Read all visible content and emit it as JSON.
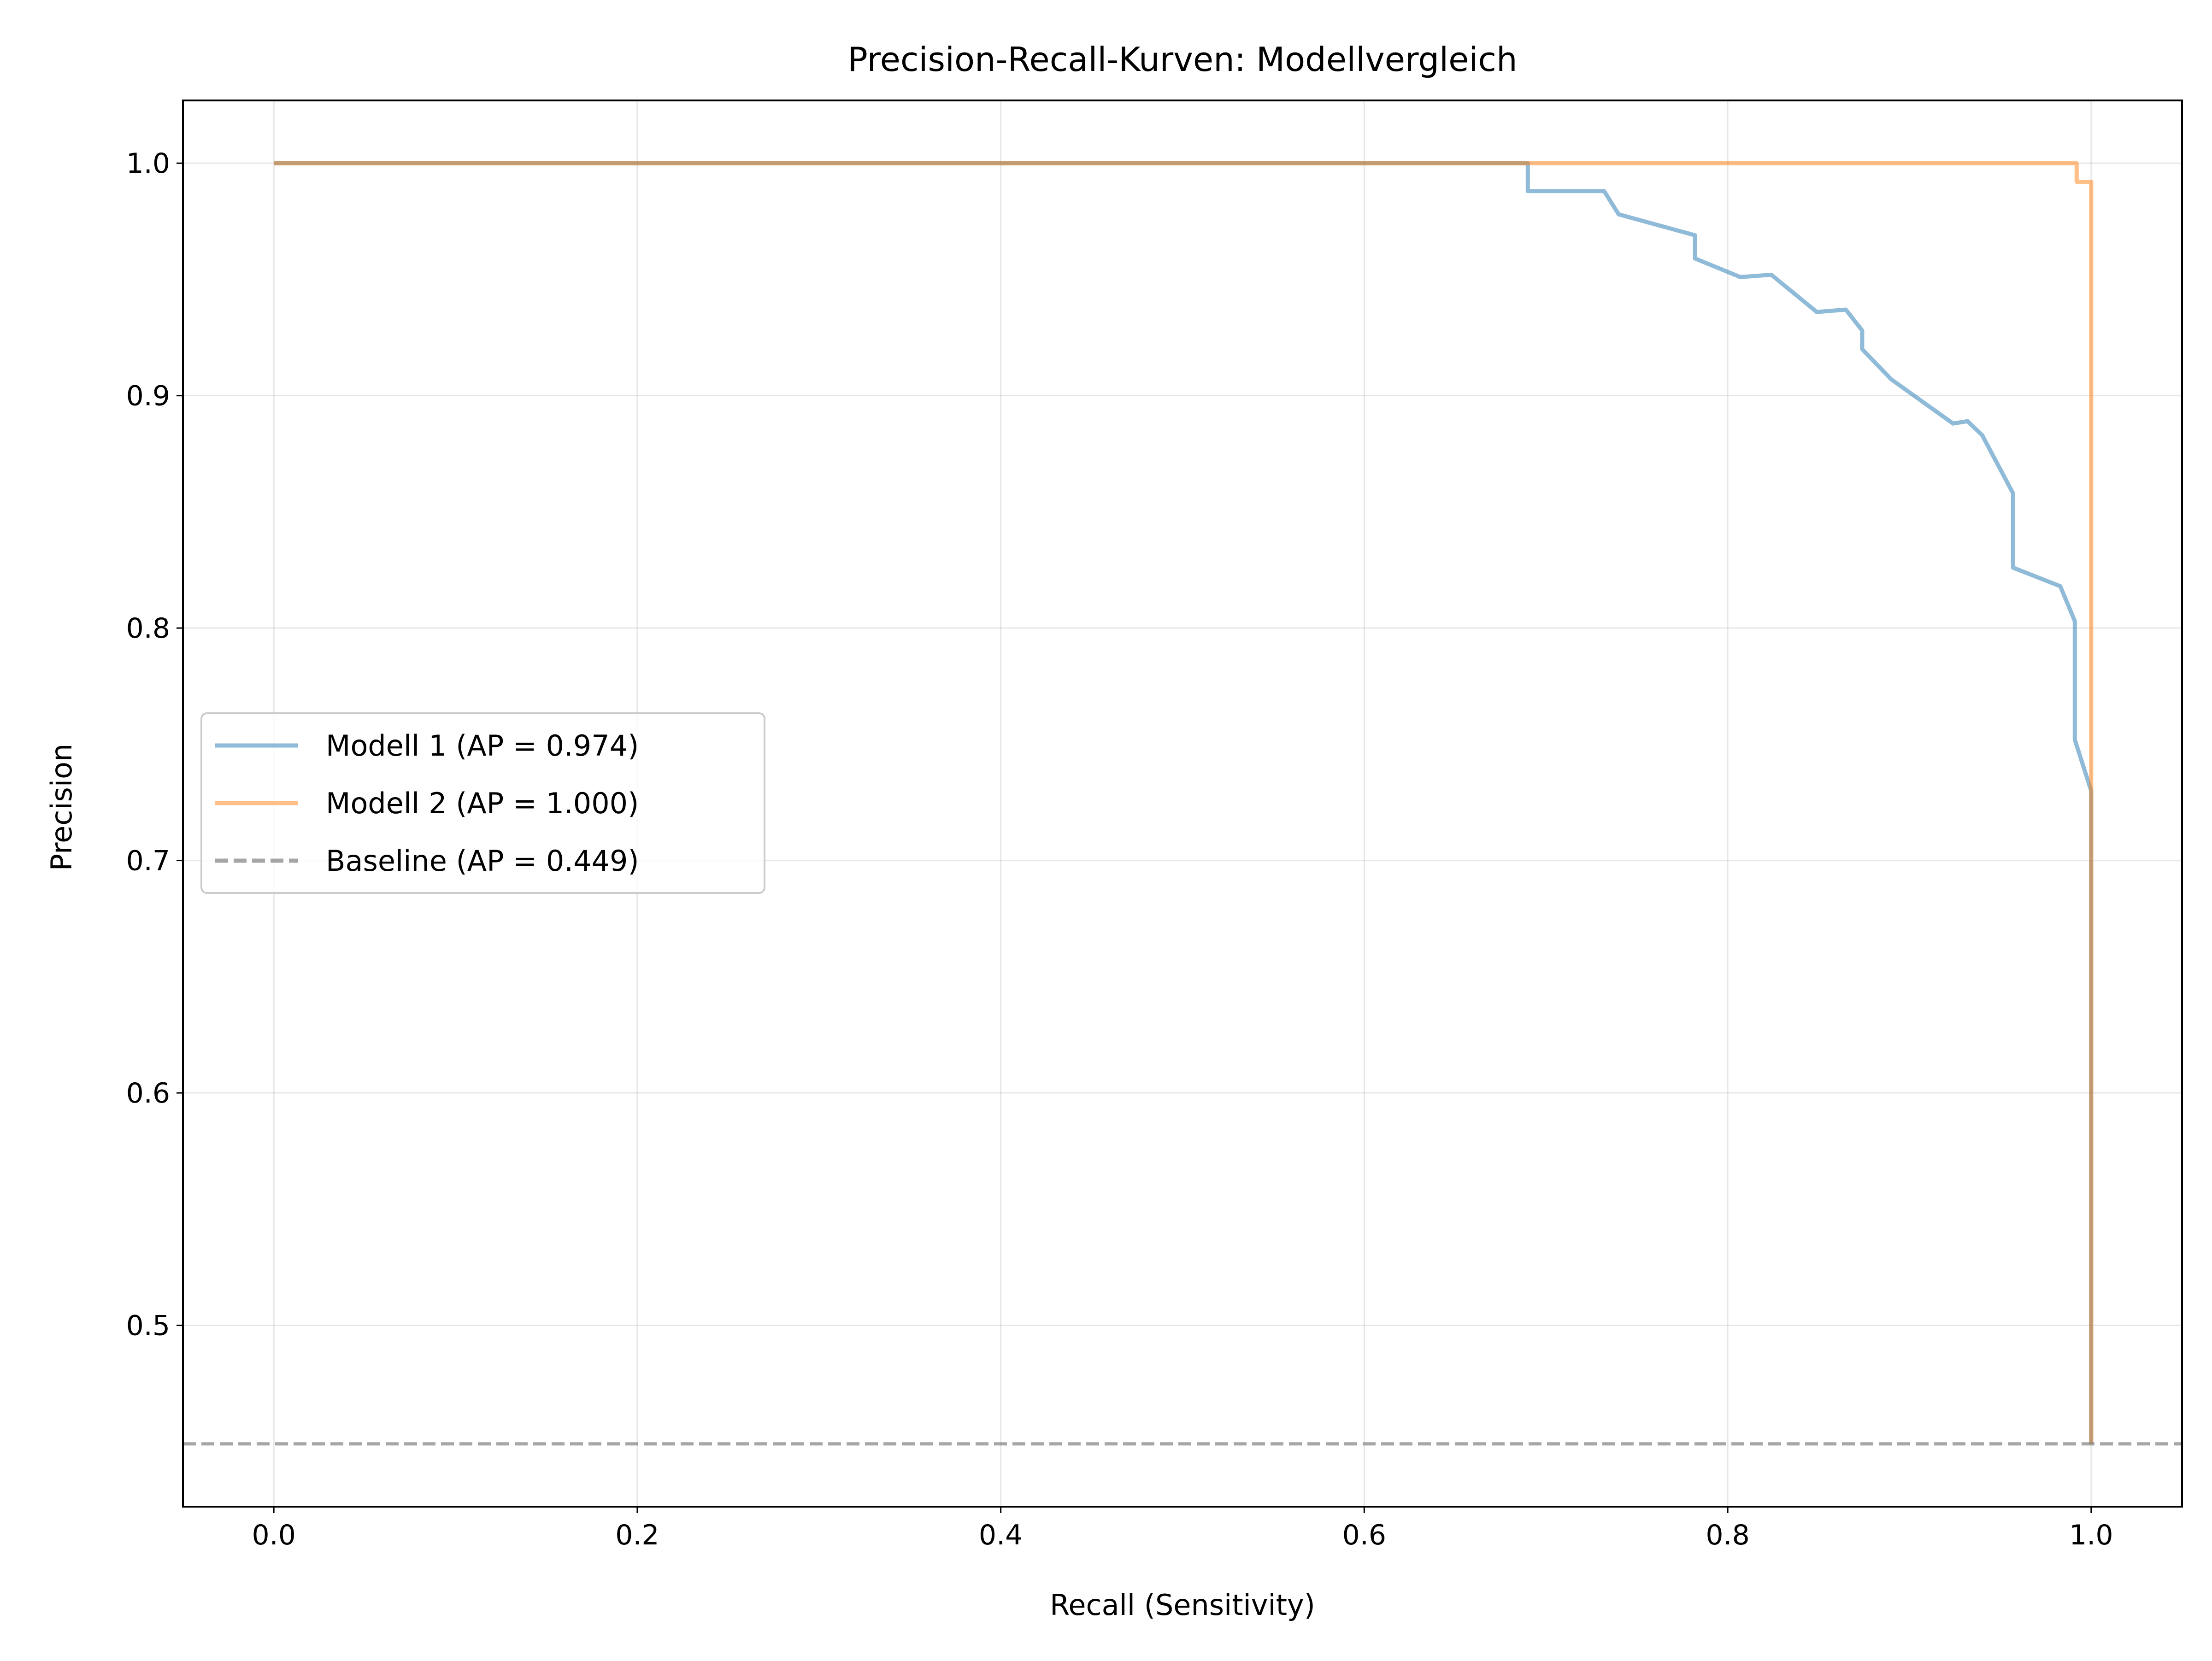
{
  "chart_data": {
    "type": "line",
    "title": "Precision-Recall-Kurven: Modellvergleich",
    "xlabel": "Recall (Sensitivity)",
    "ylabel": "Precision",
    "xlim": [
      -0.05,
      1.05
    ],
    "ylim": [
      0.422,
      1.027
    ],
    "xticks": [
      0.0,
      0.2,
      0.4,
      0.6,
      0.8,
      1.0
    ],
    "xtick_labels": [
      "0.0",
      "0.2",
      "0.4",
      "0.6",
      "0.8",
      "1.0"
    ],
    "yticks": [
      0.5,
      0.6,
      0.7,
      0.8,
      0.9,
      1.0
    ],
    "ytick_labels": [
      "0.5",
      "0.6",
      "0.7",
      "0.8",
      "0.9",
      "1.0"
    ],
    "grid": true,
    "legend_position": "center-left",
    "series": [
      {
        "name": "Modell 1 (AP = 0.974)",
        "color": "#1f77b4",
        "opacity": 0.5,
        "style": "solid",
        "points": [
          [
            0.0,
            1.0
          ],
          [
            0.69,
            1.0
          ],
          [
            0.69,
            0.988
          ],
          [
            0.732,
            0.988
          ],
          [
            0.74,
            0.978
          ],
          [
            0.782,
            0.969
          ],
          [
            0.782,
            0.959
          ],
          [
            0.807,
            0.951
          ],
          [
            0.824,
            0.952
          ],
          [
            0.849,
            0.936
          ],
          [
            0.865,
            0.937
          ],
          [
            0.874,
            0.928
          ],
          [
            0.874,
            0.92
          ],
          [
            0.89,
            0.907
          ],
          [
            0.924,
            0.888
          ],
          [
            0.932,
            0.889
          ],
          [
            0.94,
            0.883
          ],
          [
            0.957,
            0.858
          ],
          [
            0.957,
            0.826
          ],
          [
            0.983,
            0.818
          ],
          [
            0.991,
            0.803
          ],
          [
            0.991,
            0.752
          ],
          [
            1.0,
            0.73
          ],
          [
            1.0,
            0.449
          ]
        ]
      },
      {
        "name": "Modell 2 (AP = 1.000)",
        "color": "#ff7f0e",
        "opacity": 0.5,
        "style": "solid",
        "points": [
          [
            0.0,
            1.0
          ],
          [
            0.992,
            1.0
          ],
          [
            0.992,
            0.992
          ],
          [
            1.0,
            0.992
          ],
          [
            1.0,
            0.449
          ]
        ]
      },
      {
        "name": "Baseline (AP = 0.449)",
        "color": "#808080",
        "opacity": 0.7,
        "style": "dashed",
        "hline": 0.449
      }
    ]
  }
}
